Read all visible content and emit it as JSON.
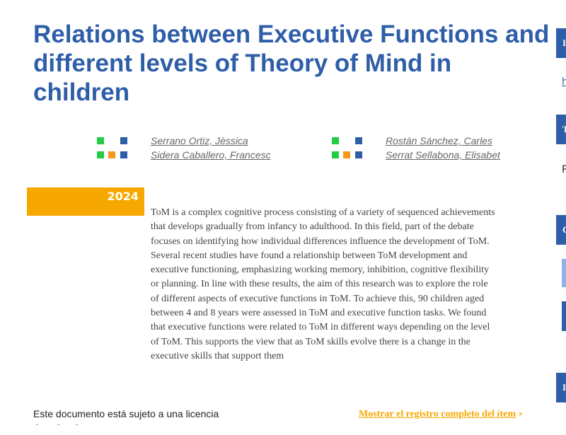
{
  "title": "Relations between Executive Functions and different levels of Theory of Mind in children",
  "authors": [
    "Serrano Ortiz, Jèssica",
    "Sidera Caballero, Francesc",
    "Rostán Sánchez, Carles",
    "Serrat Sellabona, Elisabet"
  ],
  "year": "2024",
  "abstract": "ToM is a complex cognitive process consisting of a variety of sequenced achievements that develops gradually from infancy to adulthood. In this field, part of the debate focuses on identifying how individual differences influence the development of ToM. Several recent studies have found a relationship between ToM development and executive functioning, emphasizing working memory, inhibition, cognitive flexibility or planning. In line with these results, the aim of this research was to explore the role of different aspects of executive functions in ToM. To achieve this, 90 children aged between 4 and 8 years were assessed in ToM and executive function tasks. We found that executive functions were related to ToM in different ways depending on the level of ToM. This supports the view that as ToM skills evolve there is a change in the executive skills that support them",
  "license": "Este documento está sujeto a una licencia",
  "license2": "Creative Commons",
  "show_full_record": "Mostrar el registro completo del ítem",
  "sidebar": {
    "h1": "I",
    "link": "h",
    "h2": "T",
    "text": "P",
    "h3": "C",
    "h4": "I"
  }
}
